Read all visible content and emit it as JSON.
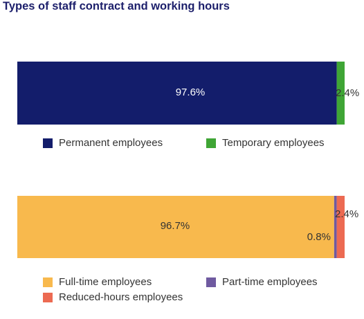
{
  "chart_data": [
    {
      "type": "bar",
      "orientation": "horizontal-stacked-100",
      "title": "Types of staff contract and working hours",
      "series": [
        {
          "name": "Permanent employees",
          "value": 97.6,
          "label": "97.6%",
          "color": "#131d6b"
        },
        {
          "name": "Temporary employees",
          "value": 2.4,
          "label": "2.4%",
          "color": "#3fa535"
        }
      ],
      "legend_placement": "bottom",
      "grid": false
    },
    {
      "type": "bar",
      "orientation": "horizontal-stacked-100",
      "series": [
        {
          "name": "Full-time employees",
          "value": 96.7,
          "label": "96.7%",
          "color": "#f8b94d"
        },
        {
          "name": "Part-time employees",
          "value": 0.8,
          "label": "0.8%",
          "color": "#6f5aa0"
        },
        {
          "name": "Reduced-hours employees",
          "value": 2.4,
          "label": "2.4%",
          "color": "#ec6a52"
        }
      ],
      "legend_placement": "bottom",
      "grid": false
    }
  ]
}
